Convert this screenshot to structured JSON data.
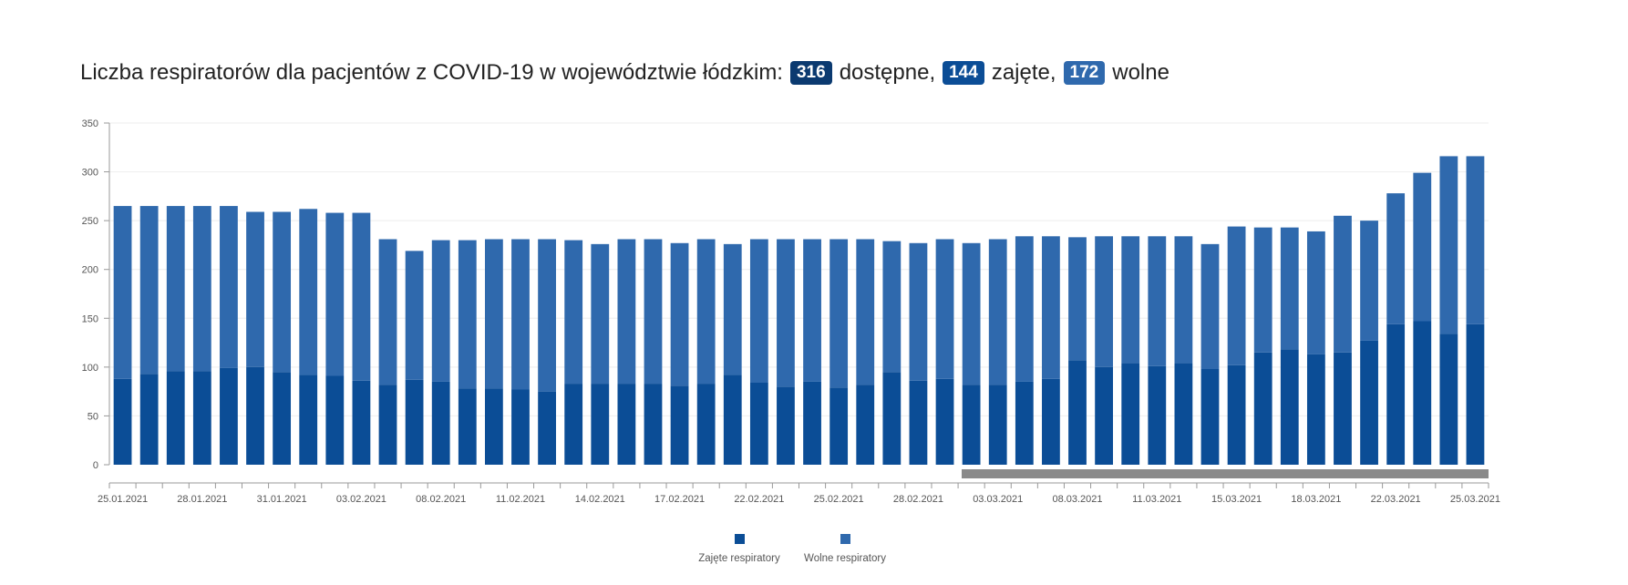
{
  "title": {
    "prefix": "Liczba respiratorów dla pacjentów z COVID-19 w województwie łódzkim:",
    "available_value": "316",
    "available_label": "dostępne,",
    "occupied_value": "144",
    "occupied_label": "zajęte,",
    "free_value": "172",
    "free_label": "wolne"
  },
  "colors": {
    "occupied": "#0b4d96",
    "free": "#2f69ad",
    "badge_available": "#0b3a70",
    "badge_occupied": "#0b4d96",
    "badge_free": "#2f69ad",
    "scrollbar": "#8a8a8a"
  },
  "legend": {
    "occupied": "Zajęte respiratory",
    "free": "Wolne respiratory"
  },
  "chart_data": {
    "type": "bar",
    "stacked": true,
    "xlabel": "",
    "ylabel": "",
    "ylim": [
      0,
      350
    ],
    "yticks": [
      0,
      50,
      100,
      150,
      200,
      250,
      300,
      350
    ],
    "grid": true,
    "legend_position": "bottom",
    "x_tick_labels": [
      "25.01.2021",
      "28.01.2021",
      "31.01.2021",
      "03.02.2021",
      "08.02.2021",
      "11.02.2021",
      "14.02.2021",
      "17.02.2021",
      "22.02.2021",
      "25.02.2021",
      "28.02.2021",
      "03.03.2021",
      "08.03.2021",
      "11.03.2021",
      "15.03.2021",
      "18.03.2021",
      "22.03.2021",
      "25.03.2021"
    ],
    "x_tick_label_bar_index": [
      0,
      3,
      6,
      9,
      12,
      15,
      18,
      21,
      24,
      27,
      30,
      33,
      36,
      39,
      42,
      45,
      48,
      51
    ],
    "series": [
      {
        "name": "Zajęte respiratory",
        "values": [
          88,
          93,
          96,
          96,
          99,
          100,
          95,
          92,
          91,
          86,
          82,
          87,
          85,
          78,
          78,
          77,
          75,
          83,
          83,
          83,
          83,
          81,
          83,
          92,
          84,
          80,
          85,
          79,
          82,
          95,
          86,
          88,
          82,
          82,
          85,
          88,
          107,
          100,
          104,
          101,
          104,
          98,
          102,
          115,
          118,
          113,
          115,
          127,
          144,
          147,
          134,
          144
        ]
      },
      {
        "name": "Wolne respiratory",
        "values": [
          177,
          172,
          169,
          169,
          166,
          159,
          164,
          170,
          167,
          172,
          149,
          132,
          145,
          152,
          153,
          154,
          156,
          147,
          143,
          148,
          148,
          146,
          148,
          134,
          147,
          151,
          146,
          152,
          149,
          134,
          141,
          143,
          145,
          149,
          149,
          146,
          126,
          134,
          130,
          133,
          130,
          128,
          142,
          128,
          125,
          126,
          140,
          123,
          134,
          152,
          182,
          172
        ]
      }
    ]
  }
}
